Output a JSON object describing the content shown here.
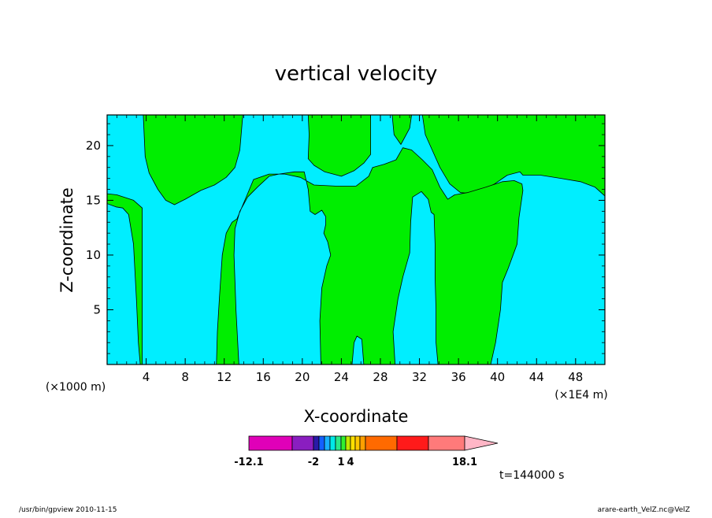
{
  "chart_data": {
    "type": "heatmap",
    "title": "vertical velocity",
    "xlabel": "X-coordinate",
    "ylabel": "Z-coordinate",
    "x_unit_left": "(×1000 m)",
    "x_unit_right": "(×1E4 m)",
    "xlim": [
      0,
      51
    ],
    "ylim": [
      0,
      22.8
    ],
    "xticks": [
      4,
      8,
      12,
      16,
      20,
      24,
      28,
      32,
      36,
      40,
      44,
      48
    ],
    "yticks": [
      5,
      10,
      15,
      20
    ],
    "colorbar": {
      "colors": [
        "#e000b8",
        "#8a1ec0",
        "#2a1aa8",
        "#1460ff",
        "#18b0ff",
        "#00e8e8",
        "#2ae88a",
        "#30f030",
        "#c0e800",
        "#ffe000",
        "#ffc800",
        "#ffa000",
        "#ff6a00",
        "#ff1a1a",
        "#ff7a7a",
        "#ffb6c6"
      ],
      "labels": [
        "-12.1",
        "-2",
        "1",
        "4",
        "18.1"
      ],
      "label_boundaries": [
        0,
        2,
        7,
        9,
        15
      ]
    },
    "background_color": "#00eeff",
    "fill_color": "#00ee00",
    "regions": [
      {
        "value": "positive",
        "points": [
          [
            0,
            22.8
          ],
          [
            3.7,
            22.8
          ],
          [
            3.9,
            19
          ],
          [
            4.3,
            17.5
          ],
          [
            5.2,
            16
          ],
          [
            6,
            15
          ],
          [
            6.9,
            14.6
          ],
          [
            8,
            15.1
          ],
          [
            9.6,
            15.9
          ],
          [
            11,
            16.4
          ],
          [
            12.2,
            17.1
          ],
          [
            13.1,
            18
          ],
          [
            13.6,
            19.6
          ],
          [
            13.9,
            22.8
          ],
          [
            20.6,
            22.8
          ],
          [
            20.7,
            21
          ],
          [
            20.6,
            18.8
          ],
          [
            21.2,
            18.2
          ],
          [
            22.3,
            17.6
          ],
          [
            24,
            17.2
          ],
          [
            25.3,
            17.7
          ],
          [
            26.3,
            18.4
          ],
          [
            27,
            19.2
          ],
          [
            27,
            22.8
          ],
          [
            29.2,
            22.8
          ],
          [
            29.4,
            21
          ],
          [
            30.1,
            20.1
          ],
          [
            31,
            21.6
          ],
          [
            31.2,
            22.8
          ],
          [
            32.3,
            22.8
          ],
          [
            32.6,
            21
          ],
          [
            33.3,
            19.6
          ],
          [
            34.1,
            18
          ],
          [
            35.1,
            16.5
          ],
          [
            36.2,
            15.7
          ],
          [
            37.7,
            15.6
          ],
          [
            39.7,
            16.5
          ],
          [
            41,
            17.3
          ],
          [
            42.3,
            17.6
          ],
          [
            42.6,
            17.3
          ],
          [
            44.4,
            17.3
          ],
          [
            46.5,
            17
          ],
          [
            48.5,
            16.7
          ],
          [
            50,
            16.2
          ],
          [
            51,
            15.4
          ],
          [
            51,
            22.8
          ]
        ]
      },
      {
        "value": "positive",
        "points": [
          [
            0,
            14.7
          ],
          [
            0.9,
            14.4
          ],
          [
            1.6,
            14.3
          ],
          [
            2.2,
            13.7
          ],
          [
            2.7,
            11
          ],
          [
            3,
            6
          ],
          [
            3.2,
            2
          ],
          [
            3.4,
            0
          ],
          [
            13.5,
            0
          ],
          [
            13.2,
            5
          ],
          [
            13,
            10
          ],
          [
            13.1,
            12.4
          ],
          [
            13.6,
            14
          ],
          [
            14.4,
            15.3
          ],
          [
            15.4,
            16.2
          ],
          [
            16.6,
            17.2
          ],
          [
            17.6,
            17.4
          ],
          [
            19.2,
            17.6
          ],
          [
            20.2,
            17.6
          ],
          [
            20.6,
            16
          ],
          [
            20.8,
            14
          ],
          [
            21.3,
            13.7
          ],
          [
            22,
            14.1
          ],
          [
            22.4,
            13.5
          ],
          [
            22.4,
            12.8
          ],
          [
            22.2,
            12
          ],
          [
            22.6,
            11.2
          ],
          [
            22.9,
            10
          ],
          [
            22.5,
            9
          ],
          [
            22,
            7
          ],
          [
            21.8,
            4
          ],
          [
            21.9,
            0
          ],
          [
            25.1,
            0
          ],
          [
            25.3,
            2
          ],
          [
            25.6,
            2.6
          ],
          [
            26.1,
            2.3
          ],
          [
            26.3,
            0
          ],
          [
            29.5,
            0
          ],
          [
            29.3,
            3
          ],
          [
            29.8,
            6
          ],
          [
            30.3,
            8
          ],
          [
            31,
            10.2
          ],
          [
            31.1,
            13
          ],
          [
            31.3,
            15.3
          ],
          [
            32.2,
            15.8
          ],
          [
            32.9,
            15.1
          ],
          [
            33.2,
            13.9
          ],
          [
            33.5,
            13.7
          ],
          [
            33.6,
            11
          ],
          [
            33.6,
            8
          ],
          [
            33.7,
            5
          ],
          [
            33.7,
            2
          ],
          [
            33.9,
            0
          ],
          [
            39.3,
            0
          ],
          [
            39.8,
            2
          ],
          [
            40.3,
            5
          ],
          [
            40.5,
            7.5
          ],
          [
            41.1,
            8.8
          ],
          [
            42,
            11
          ],
          [
            42.2,
            13.4
          ],
          [
            42.6,
            15.9
          ],
          [
            42.5,
            16.5
          ],
          [
            41.7,
            16.8
          ],
          [
            40.5,
            16.7
          ],
          [
            38.8,
            16.2
          ],
          [
            36.9,
            15.7
          ],
          [
            35.6,
            15.5
          ],
          [
            34.9,
            15.1
          ],
          [
            34.1,
            16.2
          ],
          [
            33.3,
            17.8
          ],
          [
            32.3,
            18.7
          ],
          [
            31.2,
            19.6
          ],
          [
            30.3,
            19.8
          ],
          [
            29.6,
            18.7
          ],
          [
            28.4,
            18.3
          ],
          [
            27.2,
            18
          ],
          [
            26.8,
            17.2
          ],
          [
            25.5,
            16.3
          ],
          [
            23.4,
            16.3
          ],
          [
            21.2,
            16.4
          ],
          [
            19.8,
            17.1
          ],
          [
            18.2,
            17.4
          ],
          [
            16.6,
            17.4
          ],
          [
            15,
            16.9
          ],
          [
            14.3,
            15.4
          ],
          [
            13.3,
            13.3
          ],
          [
            12.8,
            13
          ],
          [
            12.2,
            12
          ],
          [
            11.8,
            10
          ],
          [
            11.5,
            6
          ],
          [
            11.3,
            3
          ],
          [
            11.2,
            0
          ],
          [
            3.6,
            0
          ],
          [
            3.6,
            14.3
          ],
          [
            2.7,
            15
          ],
          [
            1,
            15.5
          ],
          [
            0,
            15.6
          ]
        ]
      }
    ]
  },
  "time_label": "t=144000 s",
  "footer": {
    "left": "/usr/bin/gpview  2010-11-15",
    "right": "arare-earth_VelZ.nc@VelZ"
  }
}
